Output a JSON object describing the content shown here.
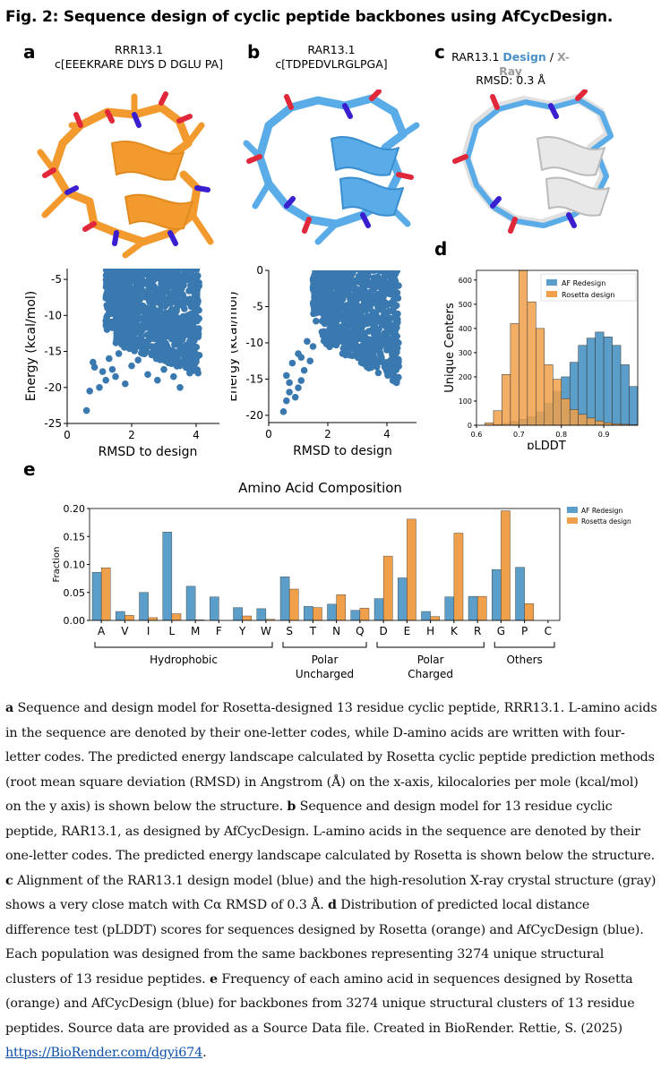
{
  "figure_title": "Fig. 2: Sequence design of cyclic peptide backbones using AfCycDesign.",
  "panels": {
    "a": {
      "label": "a",
      "name": "RRR13.1",
      "sequence": "c[EEEKRARE DLYS D DGLU PA]"
    },
    "b": {
      "label": "b",
      "name": "RAR13.1",
      "sequence": "c[TDPEDVLRGLPGA]"
    },
    "c": {
      "label": "c",
      "name": "RAR13.1",
      "design": "Design",
      "sep": "/",
      "xray": "X-Ray",
      "rmsd": "RMSD: 0.3 Å"
    },
    "d": {
      "label": "d"
    },
    "e": {
      "label": "e"
    }
  },
  "colors": {
    "orange": "#f0a04a",
    "orange_mol": "#f29a2e",
    "blue": "#5b9ec9",
    "blue_mol": "#5aace8",
    "gray_mol": "#e0e0e0",
    "red": "#e0283a",
    "violet": "#3a1fd0",
    "scatter": "#3a78b0",
    "design_text": "#4a90c8",
    "xray_text": "#9a9a9a"
  },
  "chart_data": [
    {
      "id": "scatter-a",
      "type": "scatter",
      "xlabel": "RMSD to design",
      "ylabel": "Energy (kcal/mol)",
      "xlim": [
        0,
        5
      ],
      "ylim": [
        -25,
        -3.5
      ],
      "xticks": [
        "0",
        "2",
        "4"
      ],
      "yticks": [
        "-5",
        "-10",
        "-15",
        "-20",
        "-25"
      ],
      "points": [
        [
          0.6,
          -23.2
        ],
        [
          0.7,
          -20.5
        ],
        [
          0.8,
          -16.5
        ],
        [
          0.85,
          -17.2
        ],
        [
          1.0,
          -20.0
        ],
        [
          1.1,
          -17.8
        ],
        [
          1.2,
          -19.0
        ],
        [
          1.3,
          -16.0
        ],
        [
          1.4,
          -17.5
        ],
        [
          1.5,
          -18.5
        ],
        [
          1.6,
          -15.3
        ],
        [
          1.8,
          -19.5
        ],
        [
          2.0,
          -17.0
        ],
        [
          2.2,
          -16.2
        ],
        [
          2.5,
          -18.2
        ],
        [
          2.8,
          -19.0
        ],
        [
          3.0,
          -17.5
        ],
        [
          3.3,
          -18.5
        ],
        [
          3.5,
          -20.0
        ],
        [
          3.8,
          -18.0
        ],
        [
          4.0,
          -15.8
        ]
      ]
    },
    {
      "id": "scatter-b",
      "type": "scatter",
      "xlabel": "RMSD to design",
      "ylabel": "Energy (kcal/mol)",
      "xlim": [
        0,
        5
      ],
      "ylim": [
        -21,
        0
      ],
      "xticks": [
        "0",
        "2",
        "4"
      ],
      "yticks": [
        "0",
        "-5",
        "-10",
        "-15",
        "-20"
      ],
      "points": [
        [
          0.5,
          -19.5
        ],
        [
          0.6,
          -18.0
        ],
        [
          0.7,
          -16.8
        ],
        [
          0.6,
          -14.5
        ],
        [
          0.8,
          -12.8
        ],
        [
          1.0,
          -16.2
        ],
        [
          1.1,
          -15.2
        ],
        [
          1.0,
          -11.5
        ],
        [
          1.3,
          -9.8
        ],
        [
          1.4,
          -12.5
        ],
        [
          1.2,
          -13.8
        ],
        [
          1.6,
          -7.0
        ],
        [
          1.8,
          -8.5
        ],
        [
          1.5,
          -10.5
        ],
        [
          2.0,
          -5.5
        ],
        [
          2.3,
          -4.0
        ],
        [
          2.6,
          -3.0
        ],
        [
          0.9,
          -17.5
        ],
        [
          1.1,
          -12.0
        ],
        [
          0.7,
          -15.5
        ]
      ]
    },
    {
      "id": "hist-d",
      "type": "bar",
      "xlabel": "pLDDT",
      "ylabel": "Unique Centers",
      "xlim": [
        0.6,
        0.98
      ],
      "ylim": [
        0,
        640
      ],
      "xticks": [
        "0.6",
        "0.7",
        "0.8",
        "0.9"
      ],
      "yticks": [
        "0",
        "100",
        "200",
        "300",
        "400",
        "500",
        "600"
      ],
      "legend": [
        "AF Redesign",
        "Rosetta design"
      ],
      "bin_start": 0.62,
      "bin_width": 0.02,
      "series": [
        {
          "name": "AF Redesign",
          "values": [
            0,
            3,
            8,
            15,
            25,
            35,
            55,
            90,
            140,
            200,
            260,
            330,
            360,
            385,
            365,
            330,
            250,
            160
          ]
        },
        {
          "name": "Rosetta design",
          "values": [
            10,
            60,
            210,
            420,
            640,
            510,
            400,
            250,
            190,
            110,
            65,
            45,
            30,
            18,
            10,
            6,
            4,
            2
          ]
        }
      ]
    },
    {
      "id": "bar-e",
      "type": "bar",
      "title": "Amino Acid Composition",
      "ylabel": "Fraction",
      "ylim": [
        0,
        0.2
      ],
      "yticks": [
        "0.00",
        "0.05",
        "0.10",
        "0.15",
        "0.20"
      ],
      "categories": [
        "A",
        "V",
        "I",
        "L",
        "M",
        "F",
        "Y",
        "W",
        "S",
        "T",
        "N",
        "Q",
        "D",
        "E",
        "H",
        "K",
        "R",
        "G",
        "P",
        "C"
      ],
      "groups": [
        {
          "name": "Hydrophobic",
          "start": 0,
          "end": 7
        },
        {
          "name": "Polar Uncharged",
          "start": 8,
          "end": 11
        },
        {
          "name": "Polar Charged",
          "start": 12,
          "end": 16
        },
        {
          "name": "Others",
          "start": 17,
          "end": 19
        }
      ],
      "legend": [
        "AF Redesign",
        "Rosetta design"
      ],
      "series": [
        {
          "name": "AF Redesign",
          "values": [
            0.086,
            0.016,
            0.05,
            0.158,
            0.061,
            0.042,
            0.023,
            0.021,
            0.078,
            0.025,
            0.029,
            0.018,
            0.039,
            0.076,
            0.016,
            0.042,
            0.043,
            0.091,
            0.095,
            0.0
          ]
        },
        {
          "name": "Rosetta design",
          "values": [
            0.094,
            0.009,
            0.005,
            0.012,
            0.001,
            0.0,
            0.008,
            0.002,
            0.056,
            0.023,
            0.046,
            0.022,
            0.115,
            0.181,
            0.007,
            0.156,
            0.043,
            0.196,
            0.03,
            0.0
          ]
        }
      ]
    }
  ],
  "caption": {
    "a_lab": "a",
    "a_txt": " Sequence and design model for Rosetta-designed 13 residue cyclic peptide, RRR13.1. L-amino acids in the sequence are denoted by their one-letter codes, while D-amino acids are written with four-letter codes. The predicted energy landscape calculated by Rosetta cyclic peptide prediction methods (root mean square deviation (RMSD) in Angstrom (Å) on the x-axis, kilocalories per mole (kcal/mol) on the y axis) is shown below the structure. ",
    "b_lab": "b",
    "b_txt": " Sequence and design model for 13 residue cyclic peptide, RAR13.1, as designed by AfCycDesign. L-amino acids in the sequence are denoted by their one-letter codes. The predicted energy landscape calculated by Rosetta is shown below the structure. ",
    "c_lab": "c",
    "c_txt": " Alignment of the RAR13.1 design model (blue) and the high-resolution X-ray crystal structure (gray) shows a very close match with Cα RMSD of 0.3 Å. ",
    "d_lab": "d",
    "d_txt": " Distribution of predicted local distance difference test (pLDDT) scores for sequences designed by Rosetta (orange) and AfCycDesign (blue). Each population was designed from the same backbones representing 3274 unique structural clusters of 13 residue peptides. ",
    "e_lab": "e",
    "e_txt": " Frequency of each amino acid in sequences designed by Rosetta (orange) and AfCycDesign (blue) for backbones from 3274 unique structural clusters of 13 residue peptides. Source data are provided as a Source Data file. Created in BioRender. Rettie, S. (2025) ",
    "link": "https://BioRender.com/dgyi674",
    "end": "."
  }
}
